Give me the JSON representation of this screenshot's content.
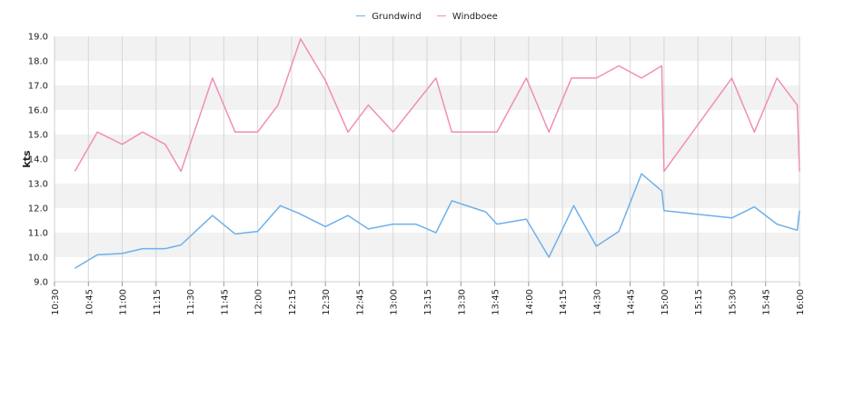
{
  "chart_data": {
    "type": "line",
    "title": "",
    "xlabel": "",
    "ylabel": "kts",
    "ylim": [
      9.0,
      19.0
    ],
    "y_ticks": [
      9.0,
      10.0,
      11.0,
      12.0,
      13.0,
      14.0,
      15.0,
      16.0,
      17.0,
      18.0,
      19.0
    ],
    "x_ticks": [
      "10:30",
      "10:45",
      "11:00",
      "11:15",
      "11:30",
      "11:45",
      "12:00",
      "12:15",
      "12:30",
      "12:45",
      "13:00",
      "13:15",
      "13:30",
      "13:45",
      "14:00",
      "14:15",
      "14:30",
      "14:45",
      "15:00",
      "15:15",
      "15:30",
      "15:45",
      "16:00"
    ],
    "xlim": [
      "10:30",
      "16:00"
    ],
    "grid": true,
    "legend_position": "top-center",
    "series": [
      {
        "name": "Grundwind",
        "color": "#6fb0ea",
        "x": [
          "10:39",
          "10:49",
          "11:00",
          "11:09",
          "11:19",
          "11:26",
          "11:40",
          "11:50",
          "12:00",
          "12:10",
          "12:18",
          "12:30",
          "12:40",
          "12:49",
          "13:00",
          "13:10",
          "13:19",
          "13:26",
          "13:41",
          "13:46",
          "13:59",
          "14:09",
          "14:20",
          "14:30",
          "14:40",
          "14:50",
          "14:59",
          "15:00",
          "15:30",
          "15:40",
          "15:50",
          "15:59",
          "16:00"
        ],
        "values": [
          9.55,
          10.1,
          10.15,
          10.35,
          10.35,
          10.5,
          11.7,
          10.95,
          11.05,
          12.1,
          11.8,
          11.25,
          11.7,
          11.15,
          11.35,
          11.35,
          11.0,
          12.3,
          11.85,
          11.35,
          11.55,
          10.0,
          12.1,
          10.45,
          11.05,
          13.4,
          12.7,
          11.9,
          11.6,
          12.05,
          11.35,
          11.1,
          11.9
        ]
      },
      {
        "name": "Windboee",
        "color": "#f28db8",
        "x": [
          "10:39",
          "10:49",
          "11:00",
          "11:09",
          "11:19",
          "11:26",
          "11:40",
          "11:50",
          "12:00",
          "12:09",
          "12:19",
          "12:30",
          "12:40",
          "12:49",
          "13:00",
          "13:19",
          "13:26",
          "13:46",
          "13:59",
          "14:09",
          "14:19",
          "14:30",
          "14:40",
          "14:50",
          "14:59",
          "15:00",
          "15:30",
          "15:40",
          "15:50",
          "15:59",
          "16:00"
        ],
        "values": [
          13.5,
          15.1,
          14.6,
          15.1,
          14.6,
          13.5,
          17.3,
          15.1,
          15.1,
          16.2,
          18.9,
          17.2,
          15.1,
          16.2,
          15.1,
          17.3,
          15.1,
          15.1,
          17.3,
          15.1,
          17.3,
          17.3,
          17.8,
          17.3,
          17.8,
          13.5,
          17.3,
          15.1,
          17.3,
          16.2,
          13.5
        ]
      }
    ]
  }
}
